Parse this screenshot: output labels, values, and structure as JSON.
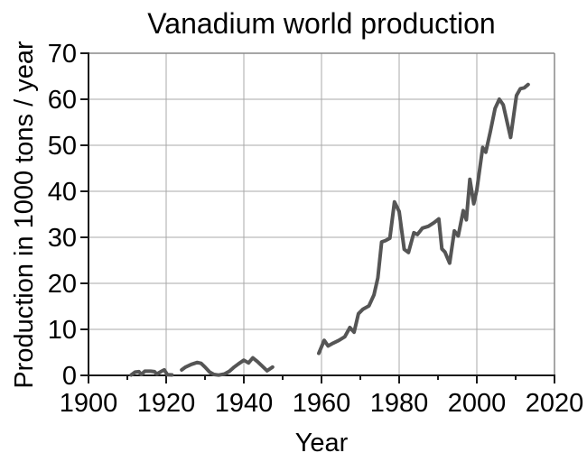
{
  "page": {
    "title": "Vanadium world production"
  },
  "chart_data": {
    "type": "line",
    "title": "Vanadium world production",
    "xlabel": "Year",
    "ylabel": "Production in 1000 tons / year",
    "xlim": [
      1900,
      2020
    ],
    "ylim": [
      0,
      70
    ],
    "x_major_ticks": [
      1900,
      1920,
      1940,
      1960,
      1980,
      2000,
      2020
    ],
    "x_minor_ticks": [
      1910,
      1930,
      1950,
      1970,
      1990,
      2010
    ],
    "y_major_ticks": [
      0,
      10,
      20,
      30,
      40,
      50,
      60,
      70
    ],
    "grid": true,
    "legend_position": "none",
    "colors": {
      "line": "#555555",
      "grid": "#a8a8a8",
      "axis": "#1a1a1a",
      "border": "#888888",
      "text": "#000000",
      "background": "#ffffff"
    },
    "series": [
      {
        "name": "Vanadium world production",
        "unit": "1000 tons / year",
        "segments": [
          {
            "x": [
              1911,
              1912,
              1913,
              1913.6,
              1914.5,
              1916,
              1917,
              1917.6,
              1918.6,
              1919.5,
              1920.3,
              1921.5
            ],
            "y": [
              0.1,
              0.7,
              0.8,
              0.2,
              0.9,
              0.9,
              0.8,
              0.3,
              0.8,
              1.2,
              0.15,
              0.1
            ]
          },
          {
            "x": [
              1924,
              1925,
              1926.5,
              1928,
              1929,
              1930,
              1931.2,
              1932.3,
              1933.5,
              1935,
              1936.3,
              1937.5,
              1938.6,
              1940,
              1941.2,
              1942.3,
              1943.5,
              1944.5,
              1946,
              1947.4
            ],
            "y": [
              1.2,
              1.8,
              2.4,
              2.8,
              2.6,
              1.8,
              0.7,
              0.2,
              0.05,
              0.3,
              0.9,
              1.8,
              2.5,
              3.3,
              2.7,
              3.8,
              3.0,
              2.2,
              1.0,
              1.8
            ]
          },
          {
            "x": [
              1959.3,
              1960.7,
              1961.7,
              1963,
              1964.5,
              1966,
              1967.3,
              1968.4,
              1969.5,
              1970.7,
              1972.2,
              1973.5,
              1974.5,
              1975.5,
              1976.5,
              1977.6,
              1978.8,
              1980,
              1981.3,
              1982.4,
              1983.8,
              1984.7,
              1986,
              1987.5,
              1989,
              1990.2,
              1991,
              1991.8,
              1993,
              1994.2,
              1995.2,
              1996.5,
              1997.3,
              1998.2,
              1999.2,
              2000,
              2001.5,
              2002.3,
              2003.5,
              2004.7,
              2005.8,
              2006.8,
              2008.7,
              2010.2,
              2011.2,
              2012.2,
              2013.2
            ],
            "y": [
              4.8,
              7.6,
              6.4,
              7.0,
              7.6,
              8.4,
              10.4,
              9.4,
              13.4,
              14.4,
              15.1,
              17.5,
              21.2,
              29.0,
              29.3,
              29.8,
              37.7,
              35.6,
              27.4,
              26.7,
              31.0,
              30.6,
              32.0,
              32.4,
              33.2,
              34.0,
              27.5,
              26.8,
              24.4,
              31.4,
              30.3,
              35.8,
              33.8,
              42.6,
              37.3,
              40.3,
              49.5,
              48.5,
              53.0,
              58.0,
              60.0,
              58.8,
              51.7,
              60.8,
              62.3,
              62.5,
              63.2
            ]
          }
        ]
      }
    ]
  }
}
